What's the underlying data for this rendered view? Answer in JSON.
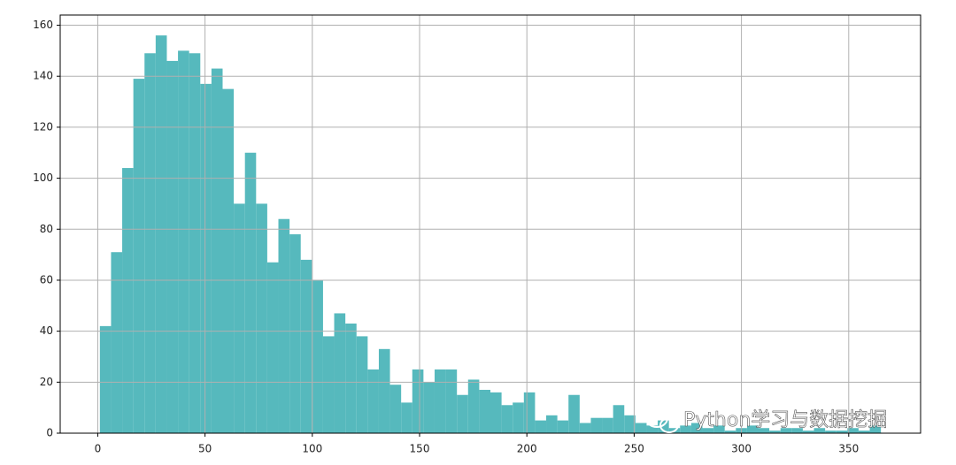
{
  "chart_data": {
    "type": "histogram",
    "bins": [
      1,
      6.2,
      11.4,
      16.6,
      21.8,
      27,
      32.2,
      37.4,
      42.6,
      47.8,
      53,
      58.2,
      63.4,
      68.6,
      73.8,
      79,
      84.2,
      89.4,
      94.6,
      99.8,
      105,
      110.2,
      115.4,
      120.6,
      125.8,
      131,
      136.2,
      141.4,
      146.6,
      151.8,
      157,
      162.2,
      167.4,
      172.6,
      177.8,
      183,
      188.2,
      193.4,
      198.6,
      203.8,
      209,
      214.2,
      219.4,
      224.6,
      229.8,
      235,
      240.2,
      245.4,
      250.6,
      255.8,
      261,
      266.2,
      271.4,
      276.6,
      281.8,
      287,
      292.2,
      297.4,
      302.6,
      307.8,
      313,
      318.2,
      323.4,
      328.6,
      333.8,
      339,
      344.2,
      349.4,
      354.6,
      359.8,
      365
    ],
    "values": [
      42,
      71,
      104,
      139,
      149,
      156,
      146,
      150,
      149,
      137,
      143,
      135,
      90,
      110,
      90,
      67,
      84,
      78,
      68,
      60,
      38,
      47,
      43,
      38,
      25,
      33,
      19,
      12,
      25,
      20,
      25,
      25,
      15,
      21,
      17,
      16,
      11,
      12,
      16,
      5,
      7,
      5,
      15,
      4,
      6,
      6,
      11,
      7,
      4,
      3,
      5,
      2,
      3,
      4,
      2,
      3,
      1,
      2,
      3,
      2,
      1,
      2,
      2,
      1,
      2,
      1,
      1,
      2,
      1,
      3
    ],
    "color": "#56b9bd",
    "xlim": [
      -17.5,
      383.5
    ],
    "ylim": [
      0,
      164
    ],
    "xticks": [
      0,
      50,
      100,
      150,
      200,
      250,
      300,
      350
    ],
    "yticks": [
      0,
      20,
      40,
      60,
      80,
      100,
      120,
      140,
      160
    ],
    "grid": true,
    "watermark": "Python学习与数据挖掘"
  }
}
